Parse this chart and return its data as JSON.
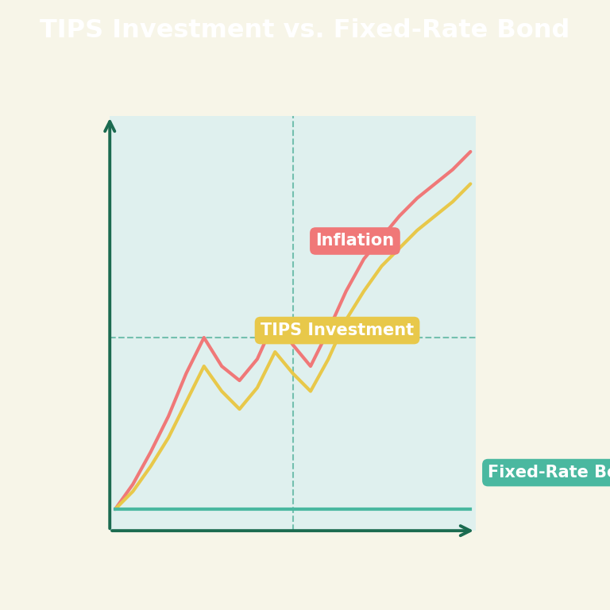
{
  "title": "TIPS Investment vs. Fixed-Rate Bond",
  "title_bg_color": "#1b6b50",
  "title_text_color": "#ffffff",
  "bg_color": "#f7f5e8",
  "chart_bg_color": "#dff0ee",
  "axis_color": "#1b6b50",
  "grid_color": "#5ab5a0",
  "inflation_color": "#f07878",
  "tips_color": "#e8c84a",
  "fixed_color": "#4ab8a0",
  "inflation_label_bg": "#f07878",
  "tips_label_bg": "#e8c84a",
  "fixed_label_bg": "#4ab8a0",
  "x": [
    0,
    1,
    2,
    3,
    4,
    5,
    6,
    7,
    8,
    9,
    10,
    11,
    12,
    13,
    14,
    15,
    16,
    17,
    18,
    19,
    20
  ],
  "inflation": [
    0.02,
    0.09,
    0.18,
    0.28,
    0.4,
    0.5,
    0.42,
    0.38,
    0.44,
    0.55,
    0.48,
    0.42,
    0.52,
    0.63,
    0.72,
    0.78,
    0.84,
    0.89,
    0.93,
    0.97,
    1.02
  ],
  "tips": [
    0.02,
    0.07,
    0.14,
    0.22,
    0.32,
    0.42,
    0.35,
    0.3,
    0.36,
    0.46,
    0.4,
    0.35,
    0.44,
    0.55,
    0.63,
    0.7,
    0.75,
    0.8,
    0.84,
    0.88,
    0.93
  ],
  "fixed": [
    0.02,
    0.02,
    0.02,
    0.02,
    0.02,
    0.02,
    0.02,
    0.02,
    0.02,
    0.02,
    0.02,
    0.02,
    0.02,
    0.02,
    0.02,
    0.02,
    0.02,
    0.02,
    0.02,
    0.02,
    0.02
  ],
  "line_width": 3.0,
  "label_fontsize": 15,
  "title_fontsize": 23
}
